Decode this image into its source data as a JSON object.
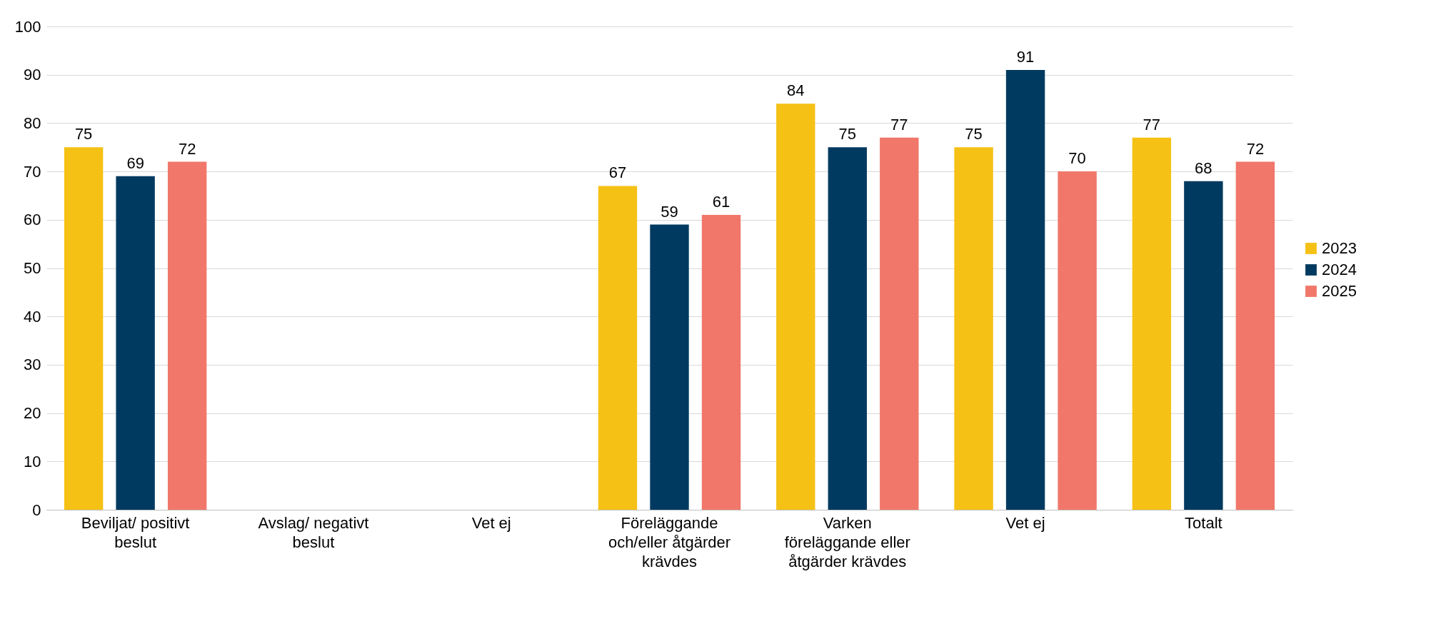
{
  "chart_data": {
    "type": "bar",
    "categories": [
      "Beviljat/ positivt beslut",
      "Avslag/ negativt beslut",
      "Vet ej",
      "Föreläggande och/eller åtgärder krävdes",
      "Varken föreläggande eller åtgärder krävdes",
      "Vet ej",
      "Totalt"
    ],
    "series": [
      {
        "name": "2023",
        "color": "#f5c115",
        "values": [
          75,
          null,
          null,
          67,
          84,
          75,
          77
        ]
      },
      {
        "name": "2024",
        "color": "#003a60",
        "values": [
          69,
          null,
          null,
          59,
          75,
          91,
          68
        ]
      },
      {
        "name": "2025",
        "color": "#f0776a",
        "values": [
          72,
          null,
          null,
          61,
          77,
          70,
          72
        ]
      }
    ],
    "ylim": [
      0,
      100
    ],
    "yticks": [
      0,
      10,
      20,
      30,
      40,
      50,
      60,
      70,
      80,
      90,
      100
    ],
    "grid": "y",
    "legend": "right",
    "data_labels": true
  }
}
